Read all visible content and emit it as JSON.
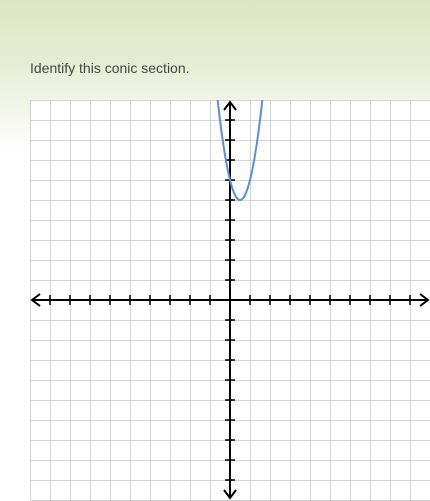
{
  "question": {
    "text": "Identify this conic section."
  },
  "graph": {
    "x_range": [
      -10,
      10
    ],
    "y_range": [
      -10,
      10
    ],
    "grid": true,
    "curve": {
      "type": "parabola",
      "vertex": [
        0.5,
        5
      ],
      "a": 4,
      "color": "#5b8fd6"
    }
  }
}
